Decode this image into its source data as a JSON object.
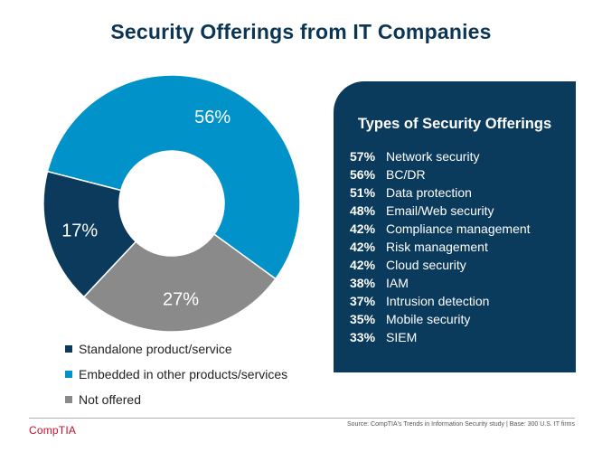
{
  "chart_data": {
    "type": "pie",
    "title": "Security Offerings from IT Companies",
    "slices": [
      {
        "name": "Standalone product/service",
        "value": 17,
        "label": "17%",
        "color": "#0b3a5c"
      },
      {
        "name": "Embedded in other products/services",
        "value": 56,
        "label": "56%",
        "color": "#0092c8"
      },
      {
        "name": "Not offered",
        "value": 27,
        "label": "27%",
        "color": "#8a8a8a"
      }
    ]
  },
  "panel": {
    "title": "Types of Security Offerings",
    "items": [
      {
        "pct": "57%",
        "label": "Network security"
      },
      {
        "pct": "56%",
        "label": "BC/DR"
      },
      {
        "pct": "51%",
        "label": "Data protection"
      },
      {
        "pct": "48%",
        "label": "Email/Web security"
      },
      {
        "pct": "42%",
        "label": "Compliance management"
      },
      {
        "pct": "42%",
        "label": "Risk management"
      },
      {
        "pct": "42%",
        "label": "Cloud security"
      },
      {
        "pct": "38%",
        "label": "IAM"
      },
      {
        "pct": "37%",
        "label": "Intrusion detection"
      },
      {
        "pct": "35%",
        "label": "Mobile security"
      },
      {
        "pct": "33%",
        "label": "SIEM"
      }
    ]
  },
  "footer": {
    "brand": "CompTIA",
    "source": "Source: CompTIA's Trends in Information Security study | Base: 300 U.S. IT firms"
  }
}
